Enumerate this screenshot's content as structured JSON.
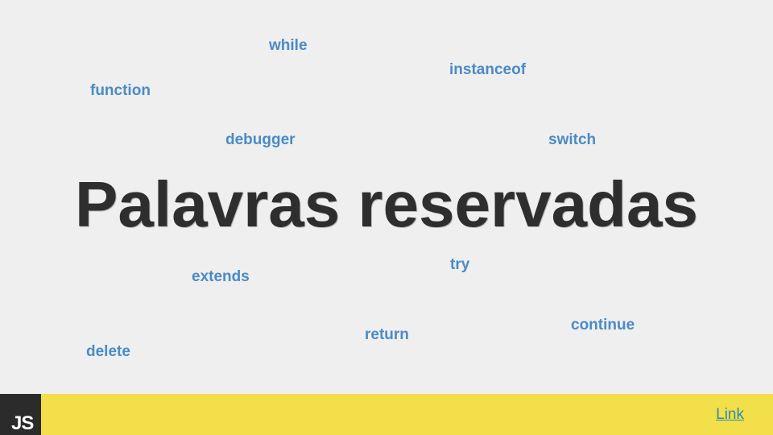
{
  "slide": {
    "title": "Palavras reservadas",
    "keywords": {
      "while": "while",
      "instanceof": "instanceof",
      "function": "function",
      "debugger": "debugger",
      "switch": "switch",
      "try": "try",
      "extends": "extends",
      "continue": "continue",
      "return": "return",
      "delete": "delete"
    }
  },
  "footer": {
    "logo_text": "JS",
    "link_label": "Link"
  },
  "colors": {
    "background": "#efefef",
    "keyword": "#4a8bc6",
    "title": "#2e2e2e",
    "footer_bar": "#f3df49",
    "logo_bg": "#2b2b2b",
    "link": "#2a8fae"
  }
}
